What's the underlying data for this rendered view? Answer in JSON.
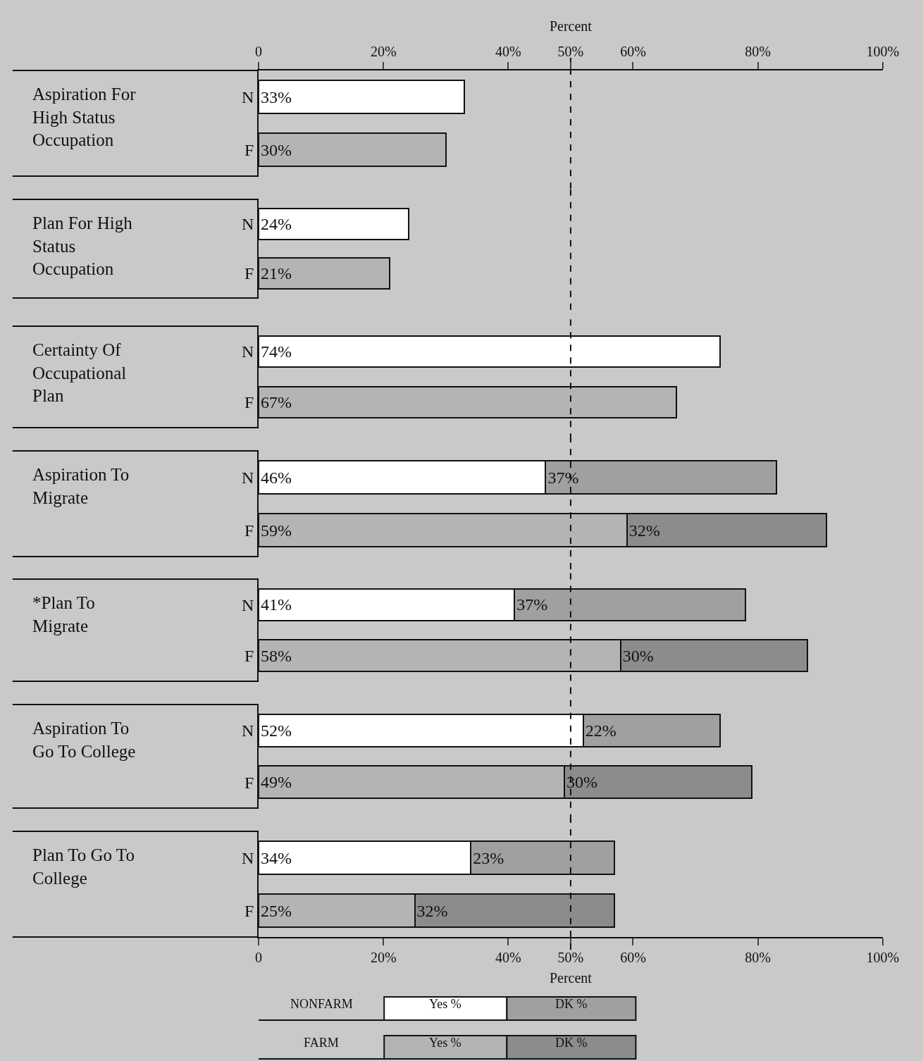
{
  "chart_data": [
    {
      "type": "bar",
      "orientation": "horizontal",
      "stacked": true,
      "ylabel": "Aspiration For High Status Occupation",
      "categories": [
        "N",
        "F"
      ],
      "xlabel": "Percent",
      "xlim": [
        0,
        100
      ],
      "xticks": [
        0,
        {
          "value": 20,
          "label": "20%"
        },
        {
          "value": 40,
          "label": "40%"
        },
        {
          "value": 50,
          "label": "50%"
        },
        {
          "value": 60,
          "label": "60%"
        },
        {
          "value": 80,
          "label": "80%"
        },
        {
          "value": 100,
          "label": "100%"
        }
      ],
      "ref_lines": [
        {
          "axis": "x",
          "value": 50,
          "line_style": "dashed"
        }
      ],
      "series": [
        {
          "colors": [
            "#ffffff",
            "#b4b4b4"
          ],
          "values": [
            33,
            30
          ],
          "value_labels": [
            "33%",
            "30%"
          ]
        },
        {
          "colors": [
            "#a0a0a0",
            "#8c8c8c"
          ],
          "values": [
            null,
            null
          ]
        }
      ]
    },
    {
      "type": "bar",
      "orientation": "horizontal",
      "stacked": true,
      "ylabel": "Plan For High Status Occupation",
      "categories": [
        "N",
        "F"
      ],
      "xlim": [
        0,
        100
      ],
      "tick_labels": "y",
      "ref_lines": [
        {
          "axis": "x",
          "value": 50,
          "line_style": "dashed"
        }
      ],
      "series": [
        {
          "colors": [
            "#ffffff",
            "#b4b4b4"
          ],
          "values": [
            24,
            21
          ],
          "value_labels": [
            "24%",
            "21%"
          ]
        },
        {
          "colors": [
            "#a0a0a0",
            "#8c8c8c"
          ],
          "values": [
            null,
            null
          ]
        }
      ]
    },
    {
      "type": "bar",
      "orientation": "horizontal",
      "stacked": true,
      "ylabel": "Certainty Of Occupational Plan",
      "categories": [
        "N",
        "F"
      ],
      "xlim": [
        0,
        100
      ],
      "tick_labels": "y",
      "ref_lines": [
        {
          "axis": "x",
          "value": 50,
          "line_style": "dashed"
        }
      ],
      "series": [
        {
          "colors": [
            "#ffffff",
            "#b4b4b4"
          ],
          "values": [
            74,
            67
          ],
          "value_labels": [
            "74%",
            "67%"
          ]
        },
        {
          "colors": [
            "#a0a0a0",
            "#8c8c8c"
          ],
          "values": [
            null,
            null
          ]
        }
      ]
    },
    {
      "type": "bar",
      "orientation": "horizontal",
      "stacked": true,
      "ylabel": "Aspiration To Migrate",
      "categories": [
        "N",
        "F"
      ],
      "xlim": [
        0,
        100
      ],
      "tick_labels": "y",
      "ref_lines": [
        {
          "axis": "x",
          "value": 50,
          "line_style": "dashed"
        }
      ],
      "series": [
        {
          "colors": [
            "#ffffff",
            "#b4b4b4"
          ],
          "values": [
            46,
            59
          ],
          "value_labels": [
            "46%",
            "59%"
          ]
        },
        {
          "colors": [
            "#a0a0a0",
            "#8c8c8c"
          ],
          "values": [
            37,
            32
          ],
          "value_labels": [
            "37%",
            "32%"
          ]
        }
      ]
    },
    {
      "type": "bar",
      "orientation": "horizontal",
      "stacked": true,
      "ylabel": "*Plan To Migrate",
      "categories": [
        "N",
        "F"
      ],
      "xlim": [
        0,
        100
      ],
      "tick_labels": "y",
      "ref_lines": [
        {
          "axis": "x",
          "value": 50,
          "line_style": "dashed"
        }
      ],
      "series": [
        {
          "colors": [
            "#ffffff",
            "#b4b4b4"
          ],
          "values": [
            41,
            58
          ],
          "value_labels": [
            "41%",
            "58%"
          ]
        },
        {
          "colors": [
            "#a0a0a0",
            "#8c8c8c"
          ],
          "values": [
            37,
            30
          ],
          "value_labels": [
            "37%",
            "30%"
          ]
        }
      ]
    },
    {
      "type": "bar",
      "orientation": "horizontal",
      "stacked": true,
      "ylabel": "Aspiration To Go To College",
      "categories": [
        "N",
        "F"
      ],
      "xlim": [
        0,
        100
      ],
      "tick_labels": "y",
      "ref_lines": [
        {
          "axis": "x",
          "value": 50,
          "line_style": "dashed"
        }
      ],
      "series": [
        {
          "colors": [
            "#ffffff",
            "#b4b4b4"
          ],
          "values": [
            52,
            49
          ],
          "value_labels": [
            "52%",
            "49%"
          ]
        },
        {
          "colors": [
            "#a0a0a0",
            "#8c8c8c"
          ],
          "values": [
            22,
            30
          ],
          "value_labels": [
            "22%",
            "30%"
          ]
        }
      ]
    },
    {
      "type": "bar",
      "orientation": "horizontal",
      "stacked": true,
      "ylabel": "Plan To Go To College",
      "categories": [
        "N",
        "F"
      ],
      "xlabel": "Percent",
      "xlim": [
        0,
        100
      ],
      "xticks": [
        0,
        {
          "value": 20,
          "label": "20%"
        },
        {
          "value": 40,
          "label": "40%"
        },
        {
          "value": 50,
          "label": "50%"
        },
        {
          "value": 60,
          "label": "60%"
        },
        {
          "value": 80,
          "label": "80%"
        },
        {
          "value": 100,
          "label": "100%"
        }
      ],
      "ref_lines": [
        {
          "axis": "x",
          "value": 50,
          "line_style": "dashed"
        }
      ],
      "series": [
        {
          "colors": [
            "#ffffff",
            "#b4b4b4"
          ],
          "values": [
            34,
            25
          ],
          "value_labels": [
            "34%",
            "25%"
          ]
        },
        {
          "colors": [
            "#a0a0a0",
            "#8c8c8c"
          ],
          "values": [
            23,
            32
          ],
          "value_labels": [
            "23%",
            "32%"
          ]
        }
      ]
    },
    {
      "type": "other",
      "annotations": [
        "NONFARM",
        "Yes %",
        "DK %",
        "FARM",
        "Yes %",
        "DK %"
      ]
    }
  ]
}
